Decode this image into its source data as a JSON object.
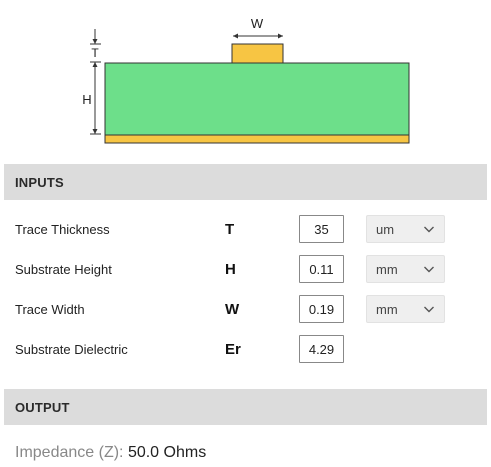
{
  "diagram": {
    "label_w": "W",
    "label_t": "T",
    "label_h": "H",
    "colors": {
      "trace": "#f7c543",
      "substrate": "#6ddf8a",
      "ground": "#f7c543",
      "outline": "#333333"
    }
  },
  "inputs_header": "INPUTS",
  "inputs": [
    {
      "label": "Trace Thickness",
      "symbol": "T",
      "value": "35",
      "unit": "um"
    },
    {
      "label": "Substrate Height",
      "symbol": "H",
      "value": "0.11",
      "unit": "mm"
    },
    {
      "label": "Trace Width",
      "symbol": "W",
      "value": "0.19",
      "unit": "mm"
    },
    {
      "label": "Substrate Dielectric",
      "symbol": "Er",
      "value": "4.29"
    }
  ],
  "output_header": "OUTPUT",
  "output": {
    "label": "Impedance (Z):",
    "value": "50.0 Ohms"
  }
}
